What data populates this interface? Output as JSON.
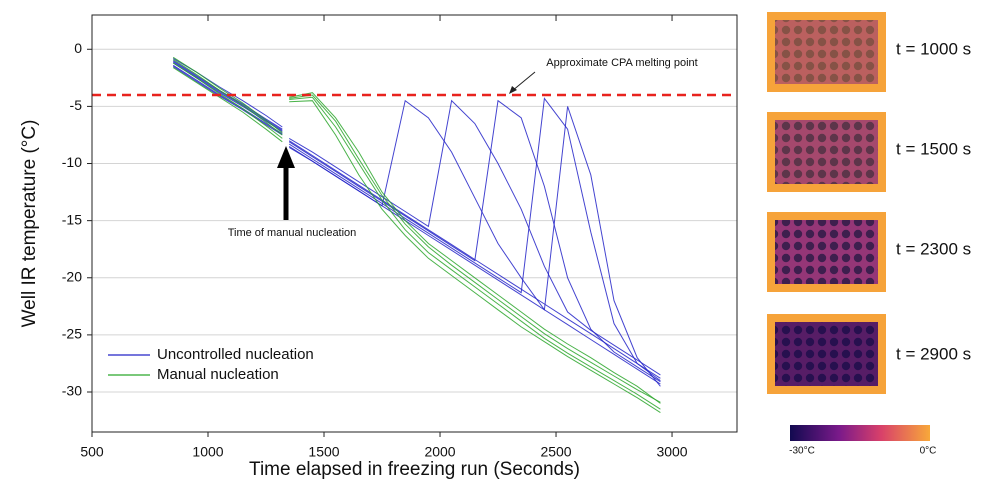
{
  "chart_data": {
    "type": "line",
    "x_label": "Time elapsed in freezing run (Seconds)",
    "y_label": "Well IR temperature (°C)",
    "x": [
      850,
      950,
      1050,
      1150,
      1250,
      1320,
      1335,
      1350,
      1450,
      1550,
      1650,
      1750,
      1850,
      1950,
      2050,
      2150,
      2250,
      2350,
      2450,
      2550,
      2650,
      2750,
      2850,
      2950
    ],
    "series": [
      {
        "name": "Uncontrolled nucleation",
        "color": "#2323c8",
        "values": [
          -1,
          -2.3,
          -3.6,
          -4.8,
          -6.1,
          -7,
          null,
          -8,
          -9.3,
          -10.6,
          -11.9,
          -13.2,
          -14.5,
          -15.8,
          -17.1,
          -18.4,
          -19.7,
          -21,
          -22.3,
          -23.6,
          -24.9,
          -26.2,
          -27.5,
          -28.8
        ]
      },
      {
        "color": "#2323c8",
        "values": [
          -1.5,
          -2.8,
          -4.1,
          -5.3,
          -6.6,
          -7.5,
          null,
          -8.6,
          -9.8,
          -11.1,
          -12.4,
          -13.7,
          -4.5,
          -6,
          -9,
          -13,
          -17,
          -20,
          -22.8,
          -24.1,
          -25.4,
          -26.7,
          -28,
          -29.3
        ]
      },
      {
        "color": "#2323c8",
        "values": [
          -0.8,
          -2,
          -3.3,
          -4.5,
          -5.8,
          -6.8,
          null,
          -7.8,
          -9,
          -10.3,
          -11.6,
          -12.9,
          -14.2,
          -15.5,
          -4.5,
          -6.5,
          -10,
          -14,
          -19,
          -23,
          -24.6,
          -25.9,
          -27.2,
          -28.5
        ]
      },
      {
        "color": "#2323c8",
        "values": [
          -1.2,
          -2.5,
          -3.8,
          -5,
          -6.3,
          -7.2,
          null,
          -8.3,
          -9.6,
          -10.9,
          -12.2,
          -13.5,
          -14.8,
          -16.1,
          -17.4,
          -18.7,
          -20,
          -21.3,
          -4.3,
          -7,
          -16,
          -24,
          -27.5,
          -29
        ]
      },
      {
        "color": "#2323c8",
        "values": [
          -1.4,
          -2.7,
          -4,
          -5.2,
          -6.5,
          -7.4,
          null,
          -8.5,
          -9.8,
          -11.1,
          -12.4,
          -13.7,
          -15,
          -16.3,
          -17.6,
          -18.9,
          -20.2,
          -21.5,
          -22.8,
          -5,
          -11,
          -22,
          -27,
          -29.5
        ]
      },
      {
        "color": "#2323c8",
        "values": [
          -1.1,
          -2.4,
          -3.7,
          -4.9,
          -6.2,
          -7.1,
          null,
          -8.1,
          -9.4,
          -10.7,
          -12,
          -13.3,
          -14.6,
          -15.9,
          -17.2,
          -18.5,
          -4.5,
          -6,
          -12,
          -20,
          -24.5,
          -26.5,
          -27.8,
          -29.1
        ]
      },
      {
        "name": "Manual nucleation",
        "color": "#2aa62a",
        "values": [
          -1.2,
          -2.5,
          -3.9,
          -5.2,
          -6.7,
          -7.8,
          null,
          -4.2,
          -3.8,
          -6,
          -9,
          -12.5,
          -15,
          -17,
          -18.5,
          -20,
          -21.5,
          -23,
          -24.5,
          -25.8,
          -27,
          -28.3,
          -29.5,
          -31
        ]
      },
      {
        "color": "#2aa62a",
        "values": [
          -0.7,
          -2,
          -3.4,
          -4.7,
          -6.2,
          -7.3,
          null,
          -4.4,
          -4.2,
          -6.8,
          -10,
          -13.2,
          -15.8,
          -17.8,
          -19.3,
          -20.8,
          -22.3,
          -23.8,
          -25.3,
          -26.6,
          -27.8,
          -29,
          -30.2,
          -31.5
        ]
      },
      {
        "color": "#2aa62a",
        "values": [
          -1.6,
          -2.9,
          -4.2,
          -5.5,
          -7,
          -8.1,
          null,
          -4.6,
          -4.5,
          -7.5,
          -11,
          -14,
          -16.3,
          -18.3,
          -19.8,
          -21.3,
          -22.8,
          -24.3,
          -25.6,
          -26.9,
          -28.1,
          -29.3,
          -30.5,
          -31.8
        ]
      },
      {
        "color": "#2aa62a",
        "values": [
          -0.9,
          -2.2,
          -3.6,
          -4.9,
          -6.4,
          -7.5,
          null,
          -4.3,
          -4,
          -6.3,
          -9.6,
          -12.8,
          -15.3,
          -17.3,
          -18.9,
          -20.4,
          -21.9,
          -23.4,
          -24.9,
          -26.2,
          -27.4,
          -28.6,
          -29.8,
          -30.9
        ]
      }
    ],
    "xlim": [
      500,
      3280
    ],
    "ylim": [
      -33.5,
      3
    ],
    "xticks": [
      500,
      1000,
      1500,
      2000,
      2500,
      3000
    ],
    "yticks": [
      0,
      -5,
      -10,
      -15,
      -20,
      -25,
      -30
    ],
    "grid": true,
    "legend": "lower left",
    "reference_line": {
      "value": -4,
      "color": "#e8231e",
      "label": "Approximate CPA melting point"
    },
    "annotation": "Time of manual nucleation"
  },
  "panels": [
    "t = 1000 s",
    "t = 1500 s",
    "t = 2300 s",
    "t = 2900 s"
  ],
  "colorbar": {
    "min_label": "-30°C",
    "max_label": "0°C"
  }
}
